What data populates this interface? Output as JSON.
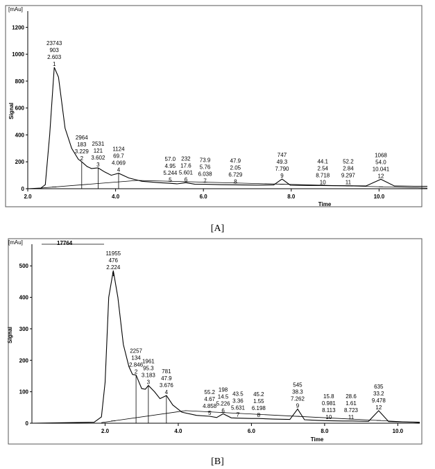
{
  "chart_data": [
    {
      "panel": "A",
      "type": "line",
      "unit_label": "[mAu]",
      "ylabel": "Signal",
      "xlabel": "Time",
      "xlim": [
        2.0,
        11.1
      ],
      "ylim": [
        0,
        1300
      ],
      "x_ticks": [
        "2.0",
        "4.0",
        "6.0",
        "8.0",
        "10.0"
      ],
      "y_ticks": [
        "0",
        "200",
        "400",
        "600",
        "800",
        "1000",
        "1200"
      ],
      "overflow_label": "",
      "peaks": [
        {
          "n": "1",
          "area": "23743",
          "height": "903",
          "rt": "2.603",
          "x": 2.603,
          "y": 903
        },
        {
          "n": "2",
          "area": "2964",
          "height": "183",
          "rt": "3.229",
          "x": 3.229,
          "y": 183
        },
        {
          "n": "3",
          "area": "2531",
          "height": "121",
          "rt": "3.602",
          "x": 3.602,
          "y": 121
        },
        {
          "n": "4",
          "area": "1124",
          "height": "69.7",
          "rt": "4.069",
          "x": 4.069,
          "y": 69.7
        },
        {
          "n": "5",
          "area": "57.0",
          "height": "4.95",
          "rt": "5.244",
          "x": 5.244,
          "y": 4.95
        },
        {
          "n": "6",
          "area": "232",
          "height": "17.6",
          "rt": "5.601",
          "x": 5.601,
          "y": 17.6
        },
        {
          "n": "7",
          "area": "73.9",
          "height": "5.76",
          "rt": "6.038",
          "x": 6.038,
          "y": 5.76
        },
        {
          "n": "8",
          "area": "47.9",
          "height": "2.05",
          "rt": "6.729",
          "x": 6.729,
          "y": 2.05
        },
        {
          "n": "9",
          "area": "747",
          "height": "49.3",
          "rt": "7.790",
          "x": 7.79,
          "y": 49.3
        },
        {
          "n": "10",
          "area": "44.1",
          "height": "2.54",
          "rt": "8.718",
          "x": 8.718,
          "y": 2.54
        },
        {
          "n": "11",
          "area": "52.2",
          "height": "2.84",
          "rt": "9.297",
          "x": 9.297,
          "y": 2.84
        },
        {
          "n": "12",
          "area": "1068",
          "height": "54.0",
          "rt": "10.041",
          "x": 10.041,
          "y": 54.0
        }
      ],
      "trace": [
        [
          2.0,
          0
        ],
        [
          2.3,
          5
        ],
        [
          2.4,
          30
        ],
        [
          2.5,
          400
        ],
        [
          2.603,
          903
        ],
        [
          2.7,
          830
        ],
        [
          2.85,
          450
        ],
        [
          3.0,
          300
        ],
        [
          3.15,
          220
        ],
        [
          3.229,
          200
        ],
        [
          3.35,
          165
        ],
        [
          3.45,
          150
        ],
        [
          3.602,
          155
        ],
        [
          3.75,
          125
        ],
        [
          3.9,
          100
        ],
        [
          4.069,
          115
        ],
        [
          4.3,
          80
        ],
        [
          4.6,
          55
        ],
        [
          5.0,
          45
        ],
        [
          5.244,
          40
        ],
        [
          5.4,
          36
        ],
        [
          5.601,
          45
        ],
        [
          5.8,
          34
        ],
        [
          6.038,
          33
        ],
        [
          6.4,
          30
        ],
        [
          6.729,
          29
        ],
        [
          7.2,
          27
        ],
        [
          7.6,
          28
        ],
        [
          7.79,
          72
        ],
        [
          7.98,
          26
        ],
        [
          8.4,
          24
        ],
        [
          8.718,
          23
        ],
        [
          9.0,
          22
        ],
        [
          9.297,
          22
        ],
        [
          9.7,
          20
        ],
        [
          10.041,
          70
        ],
        [
          10.35,
          20
        ],
        [
          10.8,
          18
        ],
        [
          11.1,
          18
        ]
      ],
      "baseline": [
        [
          2.3,
          5
        ],
        [
          4.5,
          62
        ],
        [
          11.1,
          5
        ]
      ]
    },
    {
      "panel": "B",
      "type": "line",
      "unit_label": "[mAu]",
      "ylabel": "Signal",
      "xlabel": "Time",
      "xlim": [
        0.0,
        10.6
      ],
      "ylim": [
        0,
        560
      ],
      "x_ticks": [
        "2.0",
        "4.0",
        "6.0",
        "8.0",
        "10.0"
      ],
      "y_ticks": [
        "0",
        "100",
        "200",
        "300",
        "400",
        "500"
      ],
      "overflow_label": "17764",
      "peaks": [
        {
          "n": "1",
          "area": "11955",
          "height": "476",
          "rt": "2.224",
          "x": 2.224,
          "y": 476
        },
        {
          "n": "2",
          "area": "2257",
          "height": "134",
          "rt": "2.846",
          "x": 2.846,
          "y": 134
        },
        {
          "n": "3",
          "area": "1961",
          "height": "95.3",
          "rt": "3.183",
          "x": 3.183,
          "y": 95.3
        },
        {
          "n": "4",
          "area": "781",
          "height": "47.9",
          "rt": "3.676",
          "x": 3.676,
          "y": 47.9
        },
        {
          "n": "5",
          "area": "55.2",
          "height": "4.67",
          "rt": "4.858",
          "x": 4.858,
          "y": 4.67
        },
        {
          "n": "6",
          "area": "198",
          "height": "14.5",
          "rt": "5.226",
          "x": 5.226,
          "y": 14.5
        },
        {
          "n": "7",
          "area": "43.5",
          "height": "3.36",
          "rt": "5.631",
          "x": 5.631,
          "y": 3.36
        },
        {
          "n": "8",
          "area": "45.2",
          "height": "1.55",
          "rt": "6.198",
          "x": 6.198,
          "y": 1.55
        },
        {
          "n": "9",
          "area": "545",
          "height": "38.3",
          "rt": "7.262",
          "x": 7.262,
          "y": 38.3
        },
        {
          "n": "10",
          "area": "15.8",
          "height": "0.981",
          "rt": "8.113",
          "x": 8.113,
          "y": 0.981
        },
        {
          "n": "11",
          "area": "28.6",
          "height": "1.61",
          "rt": "8.723",
          "x": 8.723,
          "y": 1.61
        },
        {
          "n": "12",
          "area": "635",
          "height": "33.2",
          "rt": "9.478",
          "x": 9.478,
          "y": 33.2
        }
      ],
      "trace": [
        [
          0.0,
          0
        ],
        [
          1.7,
          3
        ],
        [
          1.9,
          20
        ],
        [
          2.0,
          130
        ],
        [
          2.1,
          400
        ],
        [
          2.224,
          485
        ],
        [
          2.35,
          400
        ],
        [
          2.5,
          250
        ],
        [
          2.65,
          180
        ],
        [
          2.75,
          155
        ],
        [
          2.846,
          153
        ],
        [
          3.0,
          110
        ],
        [
          3.1,
          108
        ],
        [
          3.183,
          120
        ],
        [
          3.35,
          100
        ],
        [
          3.5,
          78
        ],
        [
          3.676,
          88
        ],
        [
          3.85,
          58
        ],
        [
          4.1,
          35
        ],
        [
          4.5,
          25
        ],
        [
          4.858,
          22
        ],
        [
          5.05,
          18
        ],
        [
          5.226,
          30
        ],
        [
          5.45,
          17
        ],
        [
          5.631,
          16
        ],
        [
          6.0,
          15
        ],
        [
          6.198,
          15
        ],
        [
          6.6,
          13
        ],
        [
          7.05,
          12
        ],
        [
          7.262,
          45
        ],
        [
          7.45,
          11
        ],
        [
          7.8,
          9
        ],
        [
          8.113,
          8
        ],
        [
          8.5,
          7
        ],
        [
          8.723,
          7
        ],
        [
          9.2,
          6
        ],
        [
          9.478,
          40
        ],
        [
          9.75,
          5
        ],
        [
          10.2,
          4
        ],
        [
          10.6,
          3
        ]
      ],
      "baseline": [
        [
          1.9,
          2
        ],
        [
          4.2,
          40
        ],
        [
          10.6,
          2
        ]
      ]
    }
  ],
  "captions": [
    "[A]",
    "[B]"
  ]
}
